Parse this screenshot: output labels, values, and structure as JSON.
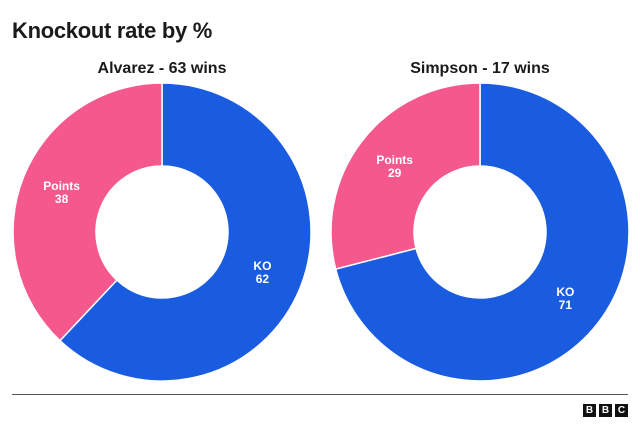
{
  "title": "Knockout rate by %",
  "colors": {
    "ko": "#1a5ce0",
    "points": "#f5588d"
  },
  "chart_data": [
    {
      "type": "pie",
      "title": "Alvarez - 63 wins",
      "slices": [
        {
          "label": "KO",
          "value": 62,
          "color": "#1a5ce0"
        },
        {
          "label": "Points",
          "value": 38,
          "color": "#f5588d"
        }
      ]
    },
    {
      "type": "pie",
      "title": "Simpson - 17 wins",
      "slices": [
        {
          "label": "KO",
          "value": 71,
          "color": "#1a5ce0"
        },
        {
          "label": "Points",
          "value": 29,
          "color": "#f5588d"
        }
      ]
    }
  ],
  "logo": {
    "letters": [
      "B",
      "B",
      "C"
    ]
  }
}
